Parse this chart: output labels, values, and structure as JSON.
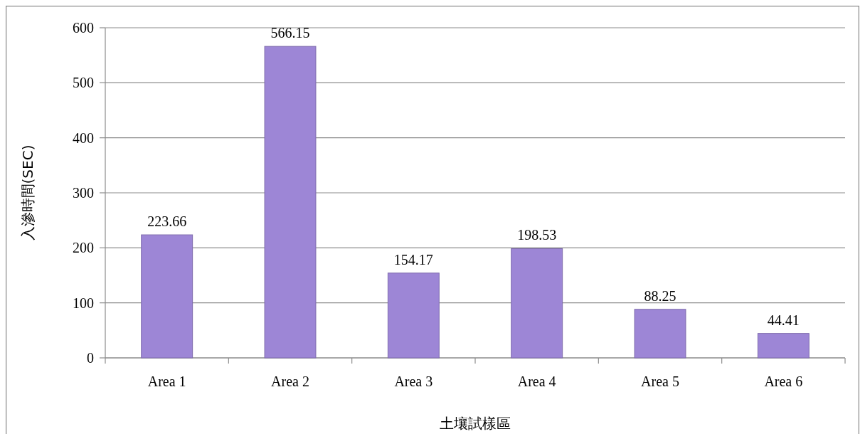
{
  "chart_data": {
    "type": "bar",
    "xlabel": "土壤試樣區",
    "ylabel": "入滲時間(SEC)",
    "categories": [
      "Area 1",
      "Area 2",
      "Area 3",
      "Area 4",
      "Area 5",
      "Area 6"
    ],
    "values": [
      223.66,
      566.15,
      154.17,
      198.53,
      88.25,
      44.41
    ],
    "color": "#9d86d6",
    "ylim": [
      0,
      600
    ],
    "yticks": [
      0,
      100,
      200,
      300,
      400,
      500,
      600
    ],
    "grid": "y",
    "data_labels": true
  }
}
